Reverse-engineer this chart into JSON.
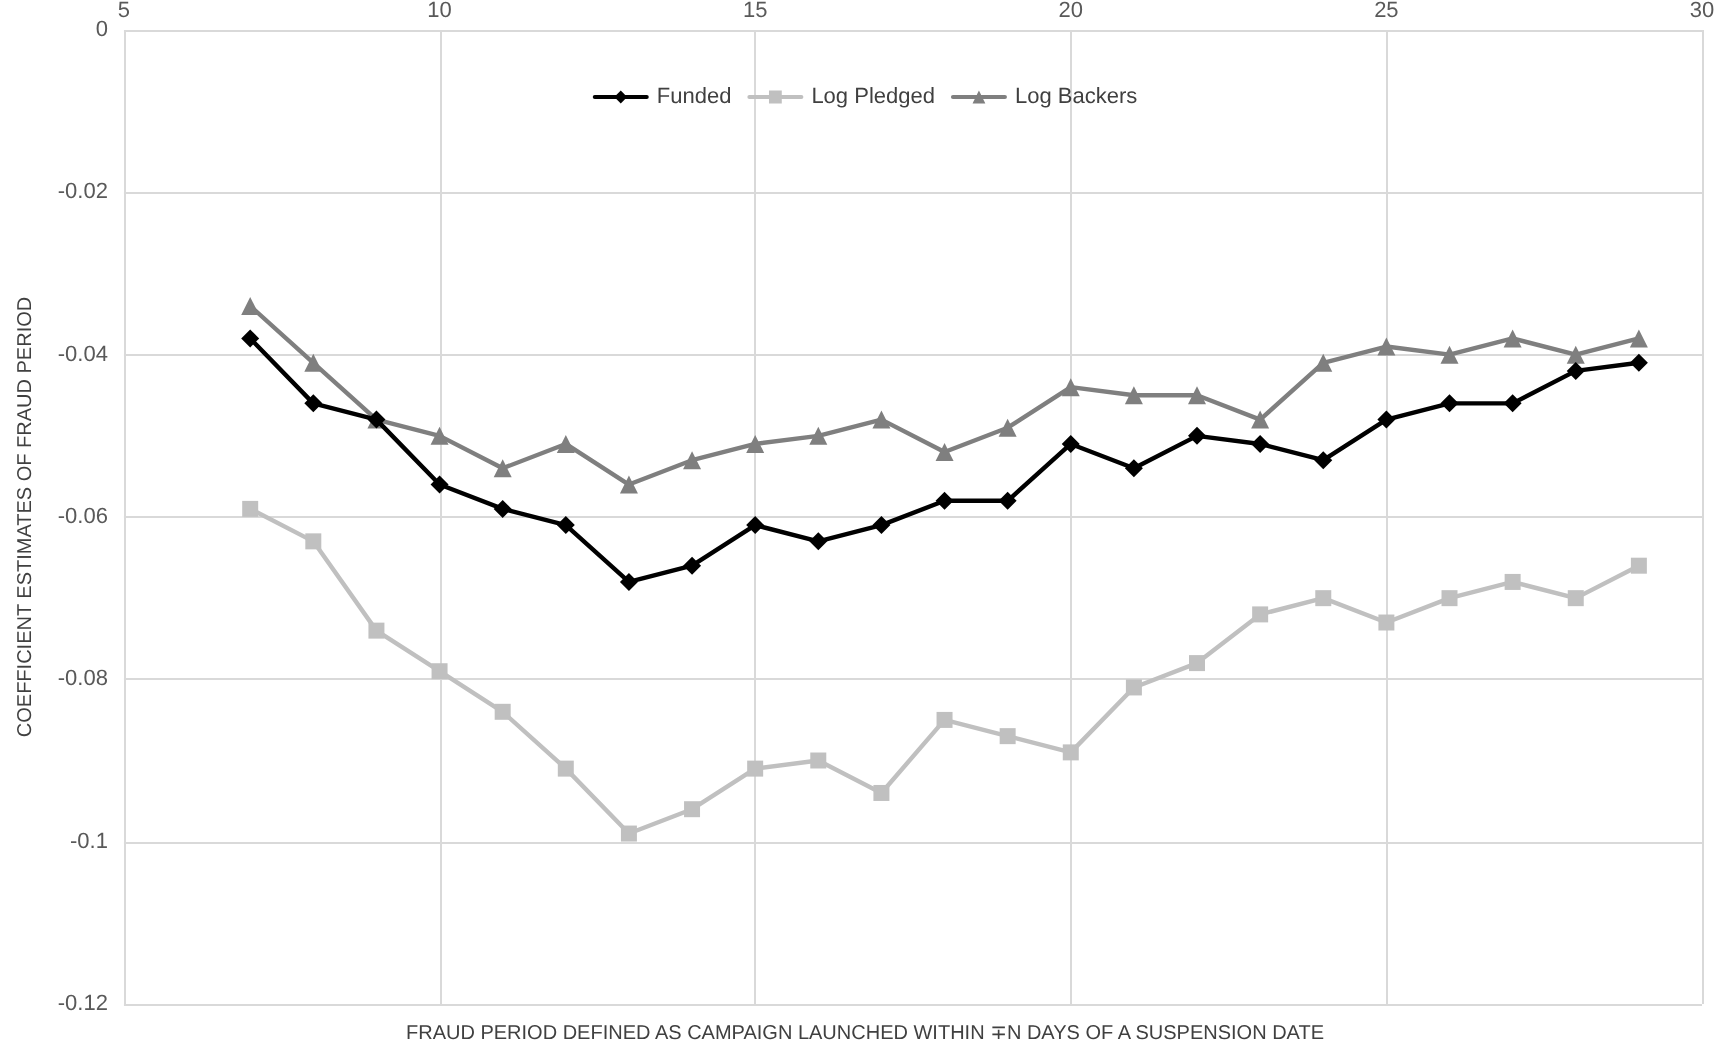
{
  "chart_data": {
    "type": "line",
    "xlabel": "FRAUD PERIOD DEFINED AS CAMPAIGN LAUNCHED WITHIN ∓N DAYS OF A SUSPENSION DATE",
    "ylabel": "COEFFICIENT ESTIMATES OF FRAUD PERIOD",
    "x": [
      7,
      8,
      9,
      10,
      11,
      12,
      13,
      14,
      15,
      16,
      17,
      18,
      19,
      20,
      21,
      22,
      23,
      24,
      25,
      26,
      27,
      28,
      29
    ],
    "series": [
      {
        "name": "Funded",
        "color": "#000000",
        "marker": "diamond",
        "values": [
          -0.038,
          -0.046,
          -0.048,
          -0.056,
          -0.059,
          -0.061,
          -0.068,
          -0.066,
          -0.061,
          -0.063,
          -0.061,
          -0.058,
          -0.058,
          -0.051,
          -0.054,
          -0.05,
          -0.051,
          -0.053,
          -0.048,
          -0.046,
          -0.046,
          -0.042,
          -0.041
        ]
      },
      {
        "name": "Log Pledged",
        "color": "#c0c0c0",
        "marker": "square",
        "values": [
          -0.059,
          -0.063,
          -0.074,
          -0.079,
          -0.084,
          -0.091,
          -0.099,
          -0.096,
          -0.091,
          -0.09,
          -0.094,
          -0.085,
          -0.087,
          -0.089,
          -0.081,
          -0.078,
          -0.072,
          -0.07,
          -0.073,
          -0.07,
          -0.068,
          -0.07,
          -0.066
        ]
      },
      {
        "name": "Log Backers",
        "color": "#7f7f7f",
        "marker": "triangle",
        "values": [
          -0.034,
          -0.041,
          -0.048,
          -0.05,
          -0.054,
          -0.051,
          -0.056,
          -0.053,
          -0.051,
          -0.05,
          -0.048,
          -0.052,
          -0.049,
          -0.044,
          -0.045,
          -0.045,
          -0.048,
          -0.041,
          -0.039,
          -0.04,
          -0.038,
          -0.04,
          -0.038
        ]
      }
    ],
    "xlim": [
      5,
      30
    ],
    "xticks": [
      5,
      10,
      15,
      20,
      25,
      30
    ],
    "ylim": [
      -0.12,
      0
    ],
    "yticks": [
      0,
      -0.02,
      -0.04,
      -0.06,
      -0.08,
      -0.1,
      -0.12
    ],
    "grid": true,
    "legend": "top",
    "line_style": "solid"
  }
}
